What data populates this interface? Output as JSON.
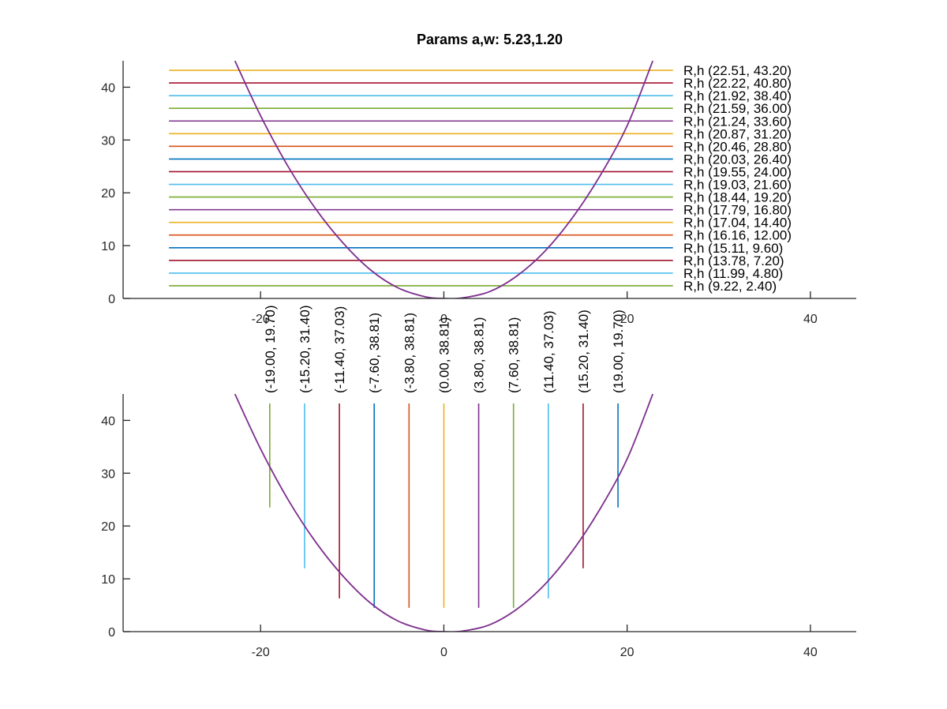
{
  "chart_data": [
    {
      "type": "line",
      "title": "Params a,w: 5.23,1.20",
      "xlim": [
        -35,
        45
      ],
      "ylim": [
        0,
        45
      ],
      "xticks": [
        -20,
        0,
        20,
        40
      ],
      "yticks": [
        0,
        10,
        20,
        30,
        40
      ],
      "grid": false,
      "curve": {
        "name": "",
        "color": "#7e2f8e",
        "formula_hint": "y = (x/a)^2 / w style U-shaped curve",
        "points": [
          [
            -22.8,
            45
          ],
          [
            -20,
            34.6
          ],
          [
            -17,
            25.0
          ],
          [
            -14,
            17.0
          ],
          [
            -11,
            10.5
          ],
          [
            -8,
            5.4
          ],
          [
            -5,
            2.0
          ],
          [
            -2,
            0.3
          ],
          [
            0,
            0
          ],
          [
            2,
            0.1
          ],
          [
            5,
            1.3
          ],
          [
            8,
            4.3
          ],
          [
            11,
            8.9
          ],
          [
            14,
            15.2
          ],
          [
            17,
            23.1
          ],
          [
            20,
            32.7
          ],
          [
            22.8,
            45
          ]
        ]
      },
      "hlines": [
        {
          "y": 2.4,
          "label": "R,h (9.22, 2.40)",
          "color": "#77ac30"
        },
        {
          "y": 4.8,
          "label": "R,h (11.99, 4.80)",
          "color": "#4dbeee"
        },
        {
          "y": 7.2,
          "label": "R,h (13.78, 7.20)",
          "color": "#a2142f"
        },
        {
          "y": 9.6,
          "label": "R,h (15.11, 9.60)",
          "color": "#0072bd"
        },
        {
          "y": 12.0,
          "label": "R,h (16.16, 12.00)",
          "color": "#d95319"
        },
        {
          "y": 14.4,
          "label": "R,h (17.04, 14.40)",
          "color": "#edb120"
        },
        {
          "y": 16.8,
          "label": "R,h (17.79, 16.80)",
          "color": "#7e2f8e"
        },
        {
          "y": 19.2,
          "label": "R,h (18.44, 19.20)",
          "color": "#77ac30"
        },
        {
          "y": 21.6,
          "label": "R,h (19.03, 21.60)",
          "color": "#4dbeee"
        },
        {
          "y": 24.0,
          "label": "R,h (19.55, 24.00)",
          "color": "#a2142f"
        },
        {
          "y": 26.4,
          "label": "R,h (20.03, 26.40)",
          "color": "#0072bd"
        },
        {
          "y": 28.8,
          "label": "R,h (20.46, 28.80)",
          "color": "#d95319"
        },
        {
          "y": 31.2,
          "label": "R,h (20.87, 31.20)",
          "color": "#edb120"
        },
        {
          "y": 33.6,
          "label": "R,h (21.24, 33.60)",
          "color": "#7e2f8e"
        },
        {
          "y": 36.0,
          "label": "R,h (21.59, 36.00)",
          "color": "#77ac30"
        },
        {
          "y": 38.4,
          "label": "R,h (21.92, 38.40)",
          "color": "#4dbeee"
        },
        {
          "y": 40.8,
          "label": "R,h (22.22, 40.80)",
          "color": "#a2142f"
        },
        {
          "y": 43.2,
          "label": "R,h (22.51, 43.20)",
          "color": "#edb120"
        }
      ],
      "hline_x_range": [
        -30,
        25
      ]
    },
    {
      "type": "line",
      "title": "",
      "xlim": [
        -35,
        45
      ],
      "ylim": [
        0,
        45
      ],
      "xticks": [
        -20,
        0,
        20,
        40
      ],
      "yticks": [
        0,
        10,
        20,
        30,
        40
      ],
      "grid": false,
      "curve": {
        "name": "",
        "color": "#7e2f8e",
        "points": [
          [
            -22.8,
            45
          ],
          [
            -20,
            34.6
          ],
          [
            -17,
            25.0
          ],
          [
            -14,
            17.0
          ],
          [
            -11,
            10.5
          ],
          [
            -8,
            5.4
          ],
          [
            -5,
            2.0
          ],
          [
            -2,
            0.3
          ],
          [
            0,
            0
          ],
          [
            2,
            0.1
          ],
          [
            5,
            1.3
          ],
          [
            8,
            4.3
          ],
          [
            11,
            8.9
          ],
          [
            14,
            15.2
          ],
          [
            17,
            23.1
          ],
          [
            20,
            32.7
          ],
          [
            22.8,
            45
          ]
        ]
      },
      "vlines": [
        {
          "x": -19.0,
          "y0": 23.5,
          "label": "(-19.00, 19.70)",
          "color": "#77ac30"
        },
        {
          "x": -15.2,
          "y0": 12.0,
          "label": "(-15.20, 31.40)",
          "color": "#4dbeee"
        },
        {
          "x": -11.4,
          "y0": 6.3,
          "label": "(-11.40, 37.03)",
          "color": "#a2142f"
        },
        {
          "x": -7.6,
          "y0": 4.5,
          "label": "(-7.60, 38.81)",
          "color": "#0072bd"
        },
        {
          "x": -3.8,
          "y0": 4.5,
          "label": "(-3.80, 38.81)",
          "color": "#d95319"
        },
        {
          "x": 0.0,
          "y0": 4.5,
          "label": "(0.00, 38.81)",
          "color": "#edb120"
        },
        {
          "x": 3.8,
          "y0": 4.5,
          "label": "(3.80, 38.81)",
          "color": "#7e2f8e"
        },
        {
          "x": 7.6,
          "y0": 4.5,
          "label": "(7.60, 38.81)",
          "color": "#77ac30"
        },
        {
          "x": 11.4,
          "y0": 6.3,
          "label": "(11.40, 37.03)",
          "color": "#4dbeee"
        },
        {
          "x": 15.2,
          "y0": 12.0,
          "label": "(15.20, 31.40)",
          "color": "#a2142f"
        },
        {
          "x": 19.0,
          "y0": 23.5,
          "label": "(19.00, 19.70)",
          "color": "#0072bd"
        }
      ],
      "vline_top": 43.2
    }
  ]
}
